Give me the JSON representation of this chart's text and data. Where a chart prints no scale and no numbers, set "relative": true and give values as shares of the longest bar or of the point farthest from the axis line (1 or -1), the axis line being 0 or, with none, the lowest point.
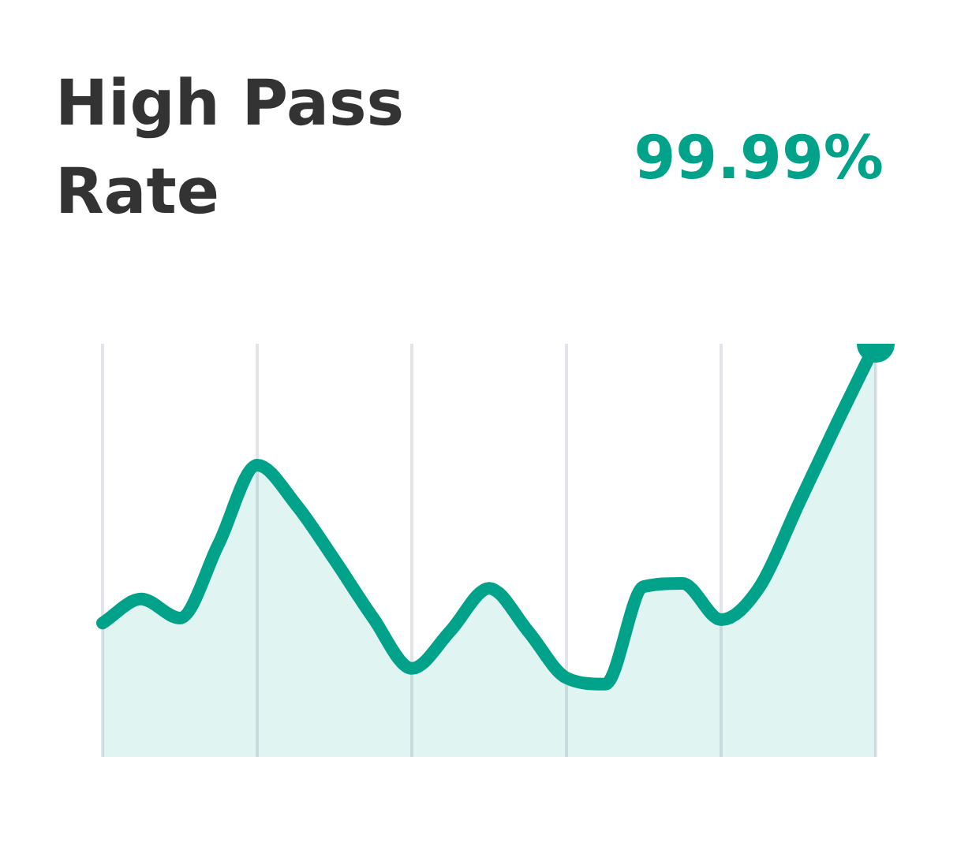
{
  "chart_data": {
    "type": "area",
    "title": "High Pass Rate",
    "annotations": [
      "99.99%"
    ],
    "relative": true,
    "grid": "x",
    "legend": false,
    "categories": [
      null,
      null,
      null,
      null,
      null,
      null,
      null,
      null,
      null,
      null,
      null,
      null,
      null,
      null,
      null,
      null,
      null,
      null,
      null,
      null,
      null
    ],
    "series": [
      {
        "color": "#00a389",
        "values": [
          0.324,
          0.382,
          0.336,
          0.515,
          0.706,
          0.611,
          0.477,
          0.336,
          0.214,
          0.305,
          0.408,
          0.305,
          0.191,
          0.176,
          0.412,
          0.42,
          0.332,
          0.412,
          0.611,
          0.809,
          1
        ]
      }
    ]
  }
}
